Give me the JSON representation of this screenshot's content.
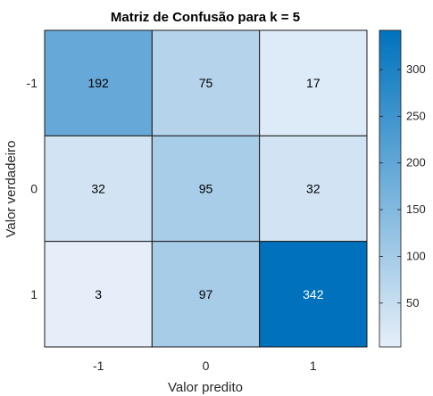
{
  "chart_data": {
    "type": "heatmap",
    "title": "Matriz de Confusão para k = 5",
    "xlabel": "Valor predito",
    "ylabel": "Valor verdadeiro",
    "x_categories": [
      "-1",
      "0",
      "1"
    ],
    "y_categories": [
      "-1",
      "0",
      "1"
    ],
    "values": [
      [
        192,
        75,
        17
      ],
      [
        32,
        95,
        32
      ],
      [
        3,
        97,
        342
      ]
    ],
    "colorbar": {
      "min": 3,
      "max": 342,
      "ticks": [
        50,
        100,
        150,
        200,
        250,
        300
      ],
      "tick_labels": [
        "50",
        "100",
        "150",
        "200",
        "250",
        "300"
      ]
    },
    "colors": {
      "low": "#e6eff9",
      "high": "#0072bd",
      "grid_line": "#1a1a1a",
      "text_dark": "#000000",
      "text_light": "#ffffff"
    },
    "grid": false,
    "legend": "colorbar-right"
  }
}
